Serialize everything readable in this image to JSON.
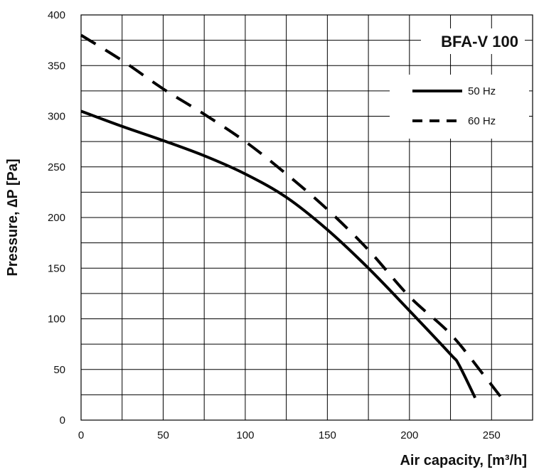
{
  "chart_data": {
    "type": "line",
    "title": "BFA-V 100",
    "xlabel": "Air capacity, [m³/h]",
    "ylabel": "Pressure, ∆P [Pa]",
    "xlim": [
      0,
      275
    ],
    "ylim": [
      0,
      400
    ],
    "x_ticks": [
      0,
      50,
      100,
      150,
      200,
      250
    ],
    "y_ticks": [
      0,
      50,
      100,
      150,
      200,
      250,
      300,
      350,
      400
    ],
    "grid": true,
    "legend_position": "top-right",
    "series": [
      {
        "name": "50 Hz",
        "style": "solid",
        "color": "#000000",
        "points": [
          [
            0,
            305
          ],
          [
            25,
            290
          ],
          [
            50,
            276
          ],
          [
            75,
            261
          ],
          [
            100,
            243
          ],
          [
            125,
            220
          ],
          [
            150,
            188
          ],
          [
            175,
            150
          ],
          [
            200,
            108
          ],
          [
            225,
            65
          ],
          [
            230,
            55
          ],
          [
            240,
            22
          ]
        ]
      },
      {
        "name": "60 Hz",
        "style": "dashed",
        "color": "#000000",
        "points": [
          [
            0,
            380
          ],
          [
            25,
            355
          ],
          [
            50,
            327
          ],
          [
            75,
            302
          ],
          [
            100,
            275
          ],
          [
            125,
            243
          ],
          [
            150,
            208
          ],
          [
            175,
            168
          ],
          [
            200,
            122
          ],
          [
            225,
            85
          ],
          [
            245,
            45
          ],
          [
            257,
            20
          ]
        ]
      }
    ]
  }
}
